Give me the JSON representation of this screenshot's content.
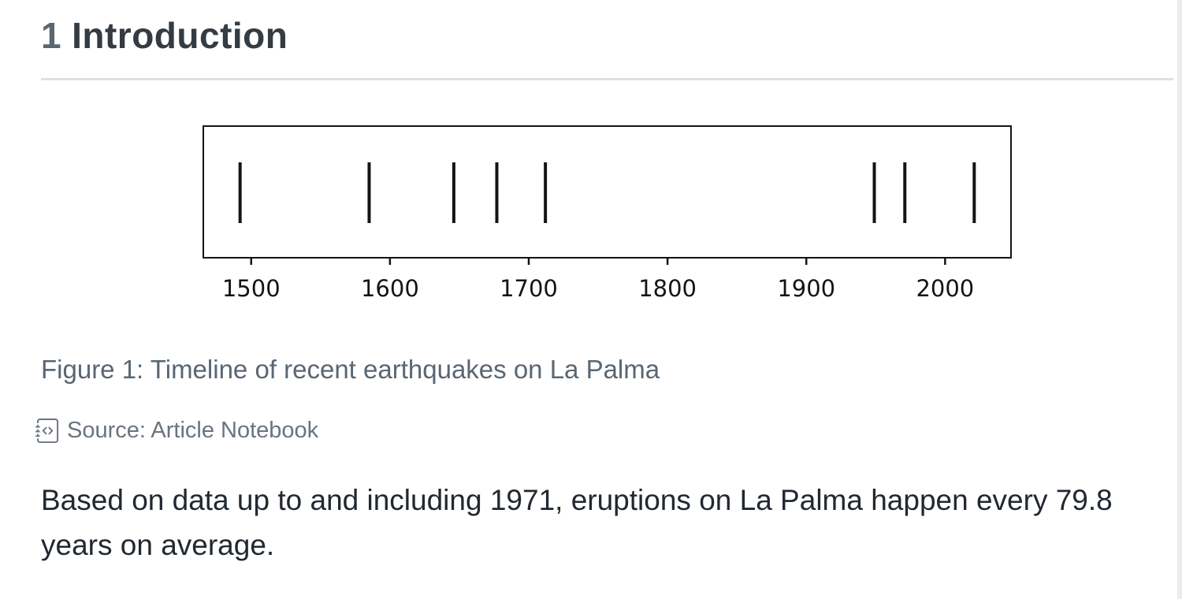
{
  "heading": {
    "number": "1",
    "title": "Introduction"
  },
  "figure": {
    "caption": "Figure 1: Timeline of recent earthquakes on La Palma",
    "source": {
      "icon": "journal-code",
      "label": "Source: Article Notebook"
    }
  },
  "paragraph": "Based on data up to and including 1971, eruptions on La Palma happen every 79.8 years on average.",
  "colors": {
    "heading_number": "#5b6770",
    "heading_title": "#343b43",
    "divider": "#dde1e5",
    "caption": "#5a6673",
    "source": "#6a7480",
    "body_text": "#212830",
    "chart_ink": "#141414",
    "scrollbar": "#ededef"
  },
  "chart_data": {
    "type": "scatter",
    "mark": "event-line",
    "title": "",
    "xlabel": "",
    "ylabel": "",
    "x": [
      1492,
      1585,
      1646,
      1677,
      1712,
      1949,
      1971,
      2021
    ],
    "xticks": [
      1500,
      1600,
      1700,
      1800,
      1900,
      2000
    ],
    "xtick_labels": [
      "1500",
      "1600",
      "1700",
      "1800",
      "1900",
      "2000"
    ],
    "xlim": [
      1465.5,
      2047.5
    ],
    "grid": false,
    "legend": false,
    "description": "Timeline (eventplot) of La Palma eruption years, black vertical event marks inside a plain box with bottom axis ticks"
  }
}
